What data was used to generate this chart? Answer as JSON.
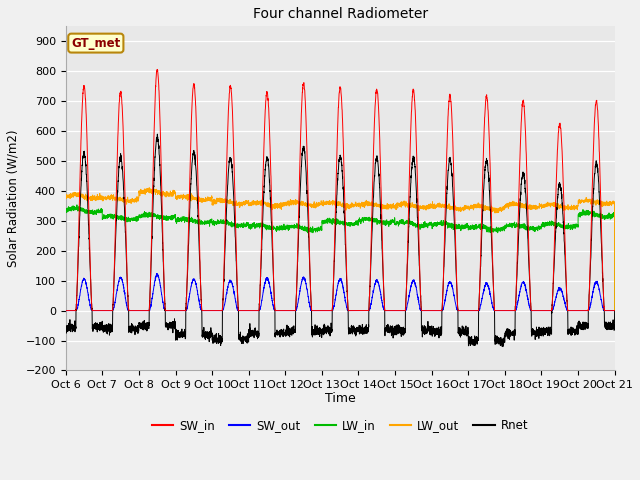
{
  "title": "Four channel Radiometer",
  "xlabel": "Time",
  "ylabel": "Solar Radiation (W/m2)",
  "annotation": "GT_met",
  "ylim": [
    -200,
    950
  ],
  "xlim": [
    0,
    15
  ],
  "x_tick_labels": [
    "Oct 6",
    "Oct 7",
    "Oct 8",
    "Oct 9",
    "Oct 10",
    "Oct 11",
    "Oct 12",
    "Oct 13",
    "Oct 14",
    "Oct 15",
    "Oct 16",
    "Oct 17",
    "Oct 18",
    "Oct 19",
    "Oct 20",
    "Oct 21"
  ],
  "colors": {
    "SW_in": "#ff0000",
    "SW_out": "#0000ff",
    "LW_in": "#00bb00",
    "LW_out": "#ffa500",
    "Rnet": "#000000"
  },
  "fig_bg": "#f0f0f0",
  "ax_bg": "#e8e8e8",
  "num_days": 15,
  "pts_per_day": 288,
  "SW_in_peaks": [
    750,
    730,
    805,
    755,
    750,
    730,
    760,
    745,
    740,
    735,
    720,
    715,
    700,
    625,
    700
  ],
  "SW_out_peaks": [
    105,
    110,
    120,
    105,
    100,
    108,
    110,
    105,
    100,
    100,
    95,
    90,
    95,
    75,
    95
  ],
  "LW_in_base": [
    335,
    310,
    315,
    300,
    290,
    280,
    275,
    295,
    300,
    290,
    285,
    275,
    280,
    285,
    320
  ],
  "LW_out_base": [
    380,
    372,
    395,
    375,
    362,
    355,
    357,
    355,
    352,
    350,
    345,
    343,
    350,
    348,
    362
  ],
  "Rnet_peaks": [
    525,
    510,
    580,
    530,
    510,
    510,
    545,
    515,
    510,
    510,
    505,
    500,
    460,
    420,
    490
  ],
  "Rnet_night": [
    -55,
    -60,
    -50,
    -80,
    -95,
    -75,
    -70,
    -65,
    -65,
    -65,
    -70,
    -100,
    -75,
    -70,
    -50
  ]
}
